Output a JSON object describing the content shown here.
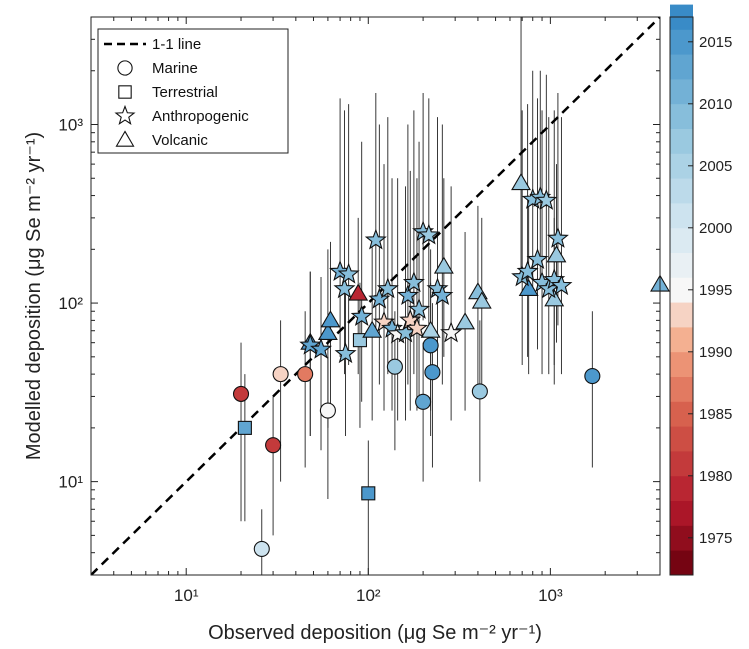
{
  "chart_data": {
    "type": "scatter",
    "xlabel": "Observed deposition (μg Se m⁻² yr⁻¹)",
    "ylabel": "Modelled deposition (μg Se m⁻² yr⁻¹)",
    "xscale": "log",
    "yscale": "log",
    "xlim": [
      3,
      4000
    ],
    "ylim": [
      3,
      4000
    ],
    "x_ticks": [
      {
        "value": 10,
        "label": "10¹"
      },
      {
        "value": 100,
        "label": "10²"
      },
      {
        "value": 1000,
        "label": "10³"
      }
    ],
    "y_ticks": [
      {
        "value": 10,
        "label": "10¹"
      },
      {
        "value": 100,
        "label": "10²"
      },
      {
        "value": 1000,
        "label": "10³"
      }
    ],
    "grid": false,
    "legend_position": "top-left",
    "legend": [
      {
        "marker": "dash",
        "label": "1-1 line"
      },
      {
        "marker": "circle",
        "label": "Marine"
      },
      {
        "marker": "square",
        "label": "Terrestrial"
      },
      {
        "marker": "star",
        "label": "Anthropogenic"
      },
      {
        "marker": "triangle",
        "label": "Volcanic"
      }
    ],
    "colorbar": {
      "range": [
        1972,
        2017
      ],
      "tick_values": [
        1975,
        1980,
        1985,
        1990,
        1995,
        2000,
        2005,
        2010,
        2015
      ],
      "tick_labels": [
        "1975",
        "1980",
        "1985",
        "1990",
        "1995",
        "2000",
        "2005",
        "2010",
        "2015"
      ]
    },
    "points": [
      {
        "type": "circle",
        "x": 20,
        "y": 31,
        "year": 1980,
        "lo": 6,
        "hi": 60
      },
      {
        "type": "circle",
        "x": 30,
        "y": 16,
        "year": 1980,
        "lo": 5,
        "hi": 30
      },
      {
        "type": "circle",
        "x": 26,
        "y": 4.2,
        "year": 2000,
        "lo": 3,
        "hi": 7
      },
      {
        "type": "circle",
        "x": 33,
        "y": 40,
        "year": 1992,
        "lo": 10,
        "hi": 80
      },
      {
        "type": "circle",
        "x": 45,
        "y": 40,
        "year": 1986,
        "lo": 12,
        "hi": 90
      },
      {
        "type": "circle",
        "x": 60,
        "y": 25,
        "year": 1995,
        "lo": 8,
        "hi": 50
      },
      {
        "type": "circle",
        "x": 140,
        "y": 44,
        "year": 2007,
        "lo": 15,
        "hi": 90
      },
      {
        "type": "circle",
        "x": 200,
        "y": 28,
        "year": 2012,
        "lo": 10,
        "hi": 60
      },
      {
        "type": "circle",
        "x": 220,
        "y": 58,
        "year": 2014,
        "lo": 18,
        "hi": 130
      },
      {
        "type": "circle",
        "x": 225,
        "y": 41,
        "year": 2014,
        "lo": 12,
        "hi": 100
      },
      {
        "type": "circle",
        "x": 410,
        "y": 32,
        "year": 2006,
        "lo": 10,
        "hi": 80
      },
      {
        "type": "circle",
        "x": 1700,
        "y": 39,
        "year": 2014,
        "lo": 12,
        "hi": 90
      },
      {
        "type": "square",
        "x": 21,
        "y": 20,
        "year": 2013,
        "lo": 6,
        "hi": 40
      },
      {
        "type": "square",
        "x": 100,
        "y": 8.6,
        "year": 2014,
        "lo": 3,
        "hi": 17
      },
      {
        "type": "square",
        "x": 90,
        "y": 62,
        "year": 2007,
        "lo": 20,
        "hi": 130
      },
      {
        "type": "triangle",
        "x": 88,
        "y": 113,
        "year": 1978,
        "lo": 40,
        "hi": 300
      },
      {
        "type": "triangle",
        "x": 48,
        "y": 60,
        "year": 2015,
        "lo": 18,
        "hi": 150
      },
      {
        "type": "triangle",
        "x": 60,
        "y": 68,
        "year": 2014,
        "lo": 20,
        "hi": 200
      },
      {
        "type": "triangle",
        "x": 62,
        "y": 80,
        "year": 2014,
        "lo": 25,
        "hi": 220
      },
      {
        "type": "triangle",
        "x": 105,
        "y": 70,
        "year": 2012,
        "lo": 22,
        "hi": 220
      },
      {
        "type": "triangle",
        "x": 220,
        "y": 70,
        "year": 2005,
        "lo": 25,
        "hi": 200
      },
      {
        "type": "triangle",
        "x": 260,
        "y": 160,
        "year": 2007,
        "lo": 50,
        "hi": 500
      },
      {
        "type": "triangle",
        "x": 340,
        "y": 78,
        "year": 2006,
        "lo": 25,
        "hi": 250
      },
      {
        "type": "triangle",
        "x": 400,
        "y": 115,
        "year": 2008,
        "lo": 35,
        "hi": 350
      },
      {
        "type": "triangle",
        "x": 420,
        "y": 102,
        "year": 2006,
        "lo": 30,
        "hi": 300
      },
      {
        "type": "triangle",
        "x": 690,
        "y": 470,
        "year": 2006,
        "lo": 150,
        "hi": 4000
      },
      {
        "type": "triangle",
        "x": 760,
        "y": 120,
        "year": 2015,
        "lo": 40,
        "hi": 400
      },
      {
        "type": "triangle",
        "x": 1050,
        "y": 105,
        "year": 2007,
        "lo": 35,
        "hi": 300
      },
      {
        "type": "triangle",
        "x": 1080,
        "y": 185,
        "year": 2006,
        "lo": 60,
        "hi": 600
      },
      {
        "type": "triangle",
        "x": 4000,
        "y": 127,
        "year": 2011,
        "lo": 40,
        "hi": 280
      },
      {
        "type": "star",
        "x": 48,
        "y": 58,
        "year": 2013,
        "lo": 18,
        "hi": 150
      },
      {
        "type": "star",
        "x": 55,
        "y": 55,
        "year": 2012,
        "lo": 15,
        "hi": 140
      },
      {
        "type": "star",
        "x": 70,
        "y": 150,
        "year": 2010,
        "lo": 50,
        "hi": 1400
      },
      {
        "type": "star",
        "x": 74,
        "y": 120,
        "year": 2008,
        "lo": 40,
        "hi": 1200
      },
      {
        "type": "star",
        "x": 78,
        "y": 145,
        "year": 2009,
        "lo": 45,
        "hi": 1300
      },
      {
        "type": "star",
        "x": 75,
        "y": 52,
        "year": 2009,
        "lo": 18,
        "hi": 150
      },
      {
        "type": "star",
        "x": 92,
        "y": 84,
        "year": 2010,
        "lo": 28,
        "hi": 800
      },
      {
        "type": "star",
        "x": 110,
        "y": 225,
        "year": 2009,
        "lo": 70,
        "hi": 1500
      },
      {
        "type": "star",
        "x": 115,
        "y": 105,
        "year": 2010,
        "lo": 35,
        "hi": 1000
      },
      {
        "type": "star",
        "x": 122,
        "y": 78,
        "year": 1993,
        "lo": 25,
        "hi": 600
      },
      {
        "type": "star",
        "x": 128,
        "y": 120,
        "year": 2008,
        "lo": 40,
        "hi": 1100
      },
      {
        "type": "star",
        "x": 135,
        "y": 72,
        "year": 2010,
        "lo": 25,
        "hi": 500
      },
      {
        "type": "star",
        "x": 145,
        "y": 67,
        "year": 1994,
        "lo": 22,
        "hi": 500
      },
      {
        "type": "star",
        "x": 160,
        "y": 68,
        "year": 2008,
        "lo": 22,
        "hi": 450
      },
      {
        "type": "star",
        "x": 165,
        "y": 110,
        "year": 2010,
        "lo": 35,
        "hi": 1000
      },
      {
        "type": "star",
        "x": 170,
        "y": 80,
        "year": 1992,
        "lo": 25,
        "hi": 550
      },
      {
        "type": "star",
        "x": 178,
        "y": 130,
        "year": 2008,
        "lo": 40,
        "hi": 1200
      },
      {
        "type": "star",
        "x": 185,
        "y": 72,
        "year": 1993,
        "lo": 25,
        "hi": 500
      },
      {
        "type": "star",
        "x": 190,
        "y": 92,
        "year": 2009,
        "lo": 30,
        "hi": 800
      },
      {
        "type": "star",
        "x": 200,
        "y": 250,
        "year": 2008,
        "lo": 80,
        "hi": 1500
      },
      {
        "type": "star",
        "x": 215,
        "y": 240,
        "year": 2007,
        "lo": 75,
        "hi": 1400
      },
      {
        "type": "star",
        "x": 240,
        "y": 120,
        "year": 2009,
        "lo": 40,
        "hi": 1100
      },
      {
        "type": "star",
        "x": 255,
        "y": 110,
        "year": 2010,
        "lo": 35,
        "hi": 1000
      },
      {
        "type": "star",
        "x": 285,
        "y": 68,
        "year": 1994,
        "lo": 22,
        "hi": 450
      },
      {
        "type": "star",
        "x": 700,
        "y": 140,
        "year": 2009,
        "lo": 45,
        "hi": 1200
      },
      {
        "type": "star",
        "x": 750,
        "y": 150,
        "year": 2008,
        "lo": 50,
        "hi": 1300
      },
      {
        "type": "star",
        "x": 800,
        "y": 380,
        "year": 2008,
        "lo": 120,
        "hi": 2000
      },
      {
        "type": "star",
        "x": 850,
        "y": 175,
        "year": 2009,
        "lo": 55,
        "hi": 1400
      },
      {
        "type": "star",
        "x": 880,
        "y": 390,
        "year": 2009,
        "lo": 130,
        "hi": 2000
      },
      {
        "type": "star",
        "x": 900,
        "y": 130,
        "year": 2008,
        "lo": 40,
        "hi": 1200
      },
      {
        "type": "star",
        "x": 950,
        "y": 375,
        "year": 2007,
        "lo": 120,
        "hi": 1900
      },
      {
        "type": "star",
        "x": 980,
        "y": 120,
        "year": 2009,
        "lo": 40,
        "hi": 1100
      },
      {
        "type": "star",
        "x": 1050,
        "y": 135,
        "year": 2008,
        "lo": 45,
        "hi": 1200
      },
      {
        "type": "star",
        "x": 1100,
        "y": 230,
        "year": 2009,
        "lo": 75,
        "hi": 1500
      },
      {
        "type": "star",
        "x": 1150,
        "y": 125,
        "year": 2008,
        "lo": 40,
        "hi": 1100
      }
    ]
  }
}
